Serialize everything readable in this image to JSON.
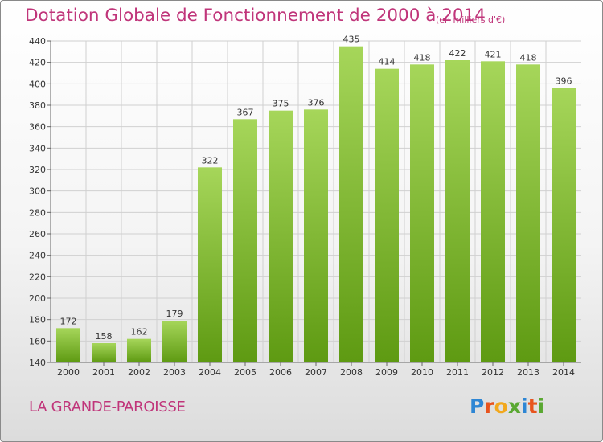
{
  "chart_data": {
    "type": "bar",
    "title": "Dotation Globale de Fonctionnement de 2000 à 2014",
    "subtitle": "(en milliers d'€)",
    "categories": [
      "2000",
      "2001",
      "2002",
      "2003",
      "2004",
      "2005",
      "2006",
      "2007",
      "2008",
      "2009",
      "2010",
      "2011",
      "2012",
      "2013",
      "2014"
    ],
    "values": [
      172,
      158,
      162,
      179,
      322,
      367,
      375,
      376,
      435,
      414,
      418,
      422,
      421,
      418,
      396
    ],
    "ylim": [
      140,
      440
    ],
    "yticks": [
      140,
      160,
      180,
      200,
      220,
      240,
      260,
      280,
      300,
      320,
      340,
      360,
      380,
      400,
      420,
      440
    ],
    "grid": true,
    "data_labels": true,
    "colors": {
      "bar_top": "#a6d65a",
      "bar_bottom": "#5e9a12",
      "grid": "#d0d0d0",
      "title": "#c0357a"
    }
  },
  "footer": {
    "commune": "LA GRANDE-PAROISSE"
  },
  "logo": {
    "letters": [
      "P",
      "r",
      "o",
      "x",
      "i",
      "t",
      "i"
    ],
    "colors": [
      "#2e86d4",
      "#e8541e",
      "#f2a81d",
      "#5aa832",
      "#2e86d4",
      "#e8541e",
      "#5aa832"
    ]
  }
}
